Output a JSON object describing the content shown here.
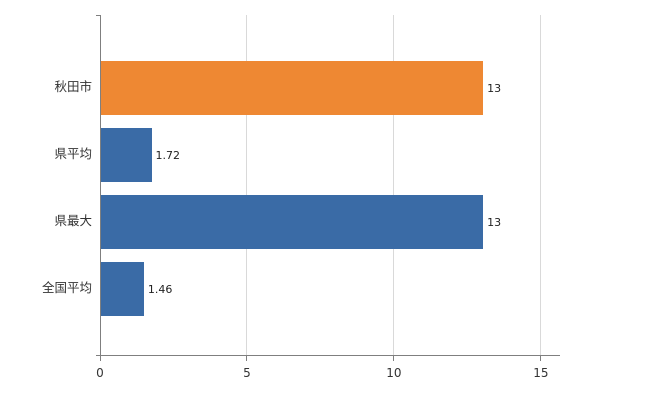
{
  "chart_data": {
    "type": "bar",
    "orientation": "horizontal",
    "title": "",
    "xlabel": "",
    "ylabel": "",
    "categories": [
      "秋田市",
      "県平均",
      "県最大",
      "全国平均"
    ],
    "values": [
      13,
      1.72,
      13,
      1.46
    ],
    "value_labels": [
      "13",
      "1.72",
      "13",
      "1.46"
    ],
    "bar_colors": [
      "#ee8833",
      "#3a6ba6",
      "#3a6ba6",
      "#3a6ba6"
    ],
    "x_ticks": [
      0,
      5,
      10,
      15
    ],
    "x_tick_labels": [
      "0",
      "5",
      "10",
      "15"
    ],
    "xlim": [
      0,
      15.65
    ],
    "grid": true,
    "legend": "none",
    "colors": {
      "highlight_orange": "#ee8833",
      "series_blue": "#3a6ba6",
      "gridline": "#d9d9d9",
      "axis": "#7f7f7f",
      "text": "#333333"
    }
  }
}
